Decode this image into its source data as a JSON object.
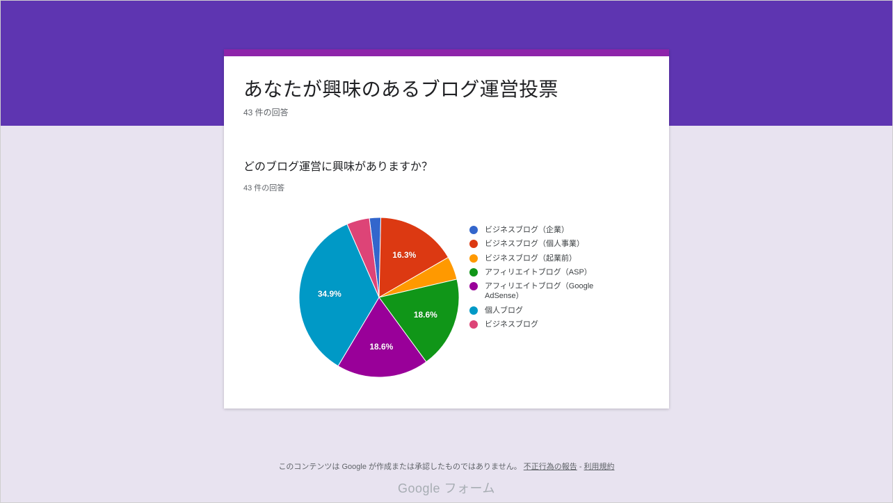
{
  "banner": {
    "color": "#5e35b1",
    "accent_bar_color": "#8e24aa"
  },
  "form": {
    "title": "あなたが興味のあるブログ運営投票",
    "response_count": "43 件の回答"
  },
  "question": {
    "title": "どのブログ運営に興味がありますか？",
    "response_count": "43 件の回答"
  },
  "chart": {
    "type": "pie",
    "background_color": "#ffffff",
    "label_fontsize": 12,
    "label_color": "#ffffff",
    "legend_fontsize": 11,
    "legend_color": "#3c4043",
    "slices": [
      {
        "label": "ビジネスブログ（企業）",
        "value": 2.3,
        "color": "#3366cc",
        "show_pct": false
      },
      {
        "label": "ビジネスブログ（個人事業）",
        "value": 16.3,
        "color": "#dc3912",
        "show_pct": true
      },
      {
        "label": "ビジネスブログ（起業前）",
        "value": 4.7,
        "color": "#ff9900",
        "show_pct": false
      },
      {
        "label": "アフィリエイトブログ（ASP）",
        "value": 18.6,
        "color": "#109618",
        "show_pct": true
      },
      {
        "label": "アフィリエイトブログ（Google AdSense）",
        "value": 18.6,
        "color": "#990099",
        "show_pct": true
      },
      {
        "label": "個人ブログ",
        "value": 34.9,
        "color": "#0099c6",
        "show_pct": true
      },
      {
        "label": "ビジネスブログ",
        "value": 4.6,
        "color": "#dd4477",
        "show_pct": false
      }
    ],
    "start_angle_deg": -7
  },
  "footer": {
    "disclaimer": "このコンテンツは Google が作成または承認したものではありません。",
    "report_link": "不正行為の報告",
    "terms_link": "利用規約",
    "separator": " - ",
    "logo_text": "フォーム",
    "logo_brand": "Google"
  }
}
